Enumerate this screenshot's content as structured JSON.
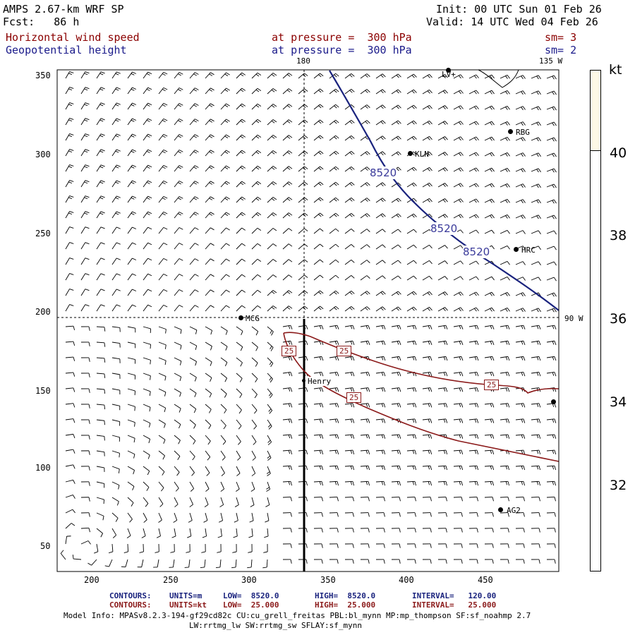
{
  "header": {
    "model": "AMPS 2.67-km WRF SP",
    "fcst": "Fcst:   86 h",
    "init": "Init: 00 UTC Sun 01 Feb 26",
    "valid": "Valid: 14 UTC Wed 04 Feb 26",
    "field1": "Horizontal wind speed",
    "field1_level": "at pressure =  300 hPa",
    "field1_sm": "sm= 3",
    "field2": "Geopotential height",
    "field2_level": "at pressure =  300 hPa",
    "field2_sm": "sm= 2"
  },
  "map": {
    "meridian_labels": {
      "top_180": "180",
      "top_135w": "135 W",
      "right_90w": "90 W"
    },
    "x_ticks": [
      "200",
      "250",
      "300",
      "350",
      "400",
      "450"
    ],
    "y_ticks": [
      "350",
      "300",
      "250",
      "200",
      "150",
      "100",
      "50"
    ],
    "stations": [
      "KLN",
      "RBG",
      "HRC",
      "MCG",
      "Henry",
      "AG2",
      "LV+"
    ],
    "height_contour_labels": [
      "8520",
      "8520",
      "8520"
    ],
    "speed_contour_labels": [
      "25",
      "25",
      "25",
      "25"
    ]
  },
  "colorbar": {
    "unit": "kt",
    "ticks": [
      "40",
      "38",
      "36",
      "34",
      "32"
    ],
    "fill_color": "#fdf8e6"
  },
  "footer": {
    "c1_label": "CONTOURS:",
    "c1_units": "UNITS=m",
    "c1_low": "LOW=  8520.0",
    "c1_high": "HIGH=  8520.0",
    "c1_interval": "INTERVAL=   120.00",
    "c2_label": "CONTOURS:",
    "c2_units": "UNITS=kt",
    "c2_low": "LOW=  25.000",
    "c2_high": "HIGH=  25.000",
    "c2_interval": "INTERVAL=   25.000",
    "model_info": "Model Info: MPASv8.2.3-194-gf29cd82c CU:cu_grell_freitas PBL:bl_mynn MP:mp_thompson SF:sf_noahmp 2.7",
    "model_info2": "LW:rrtmg_lw SW:rrtmg_sw SFLAY:sf_mynn"
  },
  "colors": {
    "height_contour": "#1a237e",
    "speed_contour": "#8b1a1a",
    "barbs": "#000000"
  }
}
